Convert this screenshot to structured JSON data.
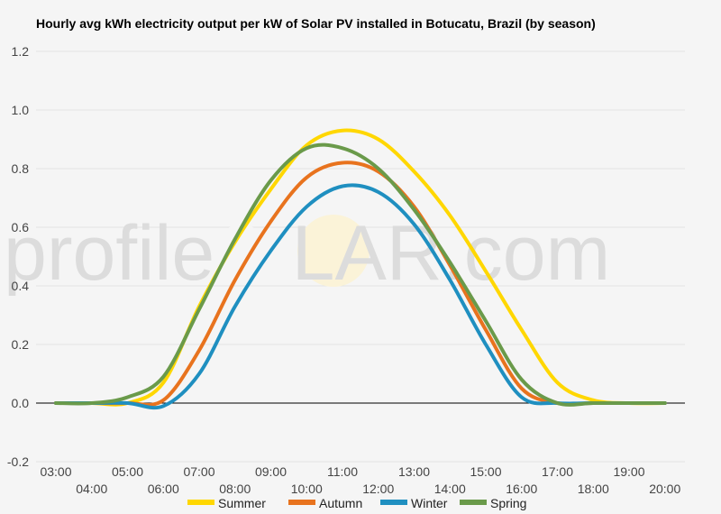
{
  "chart_data": {
    "type": "line",
    "title": "Hourly avg kWh electricity output per kW of Solar PV installed in Botucatu, Brazil (by season)",
    "xlabel": "",
    "ylabel": "",
    "ylim": [
      -0.2,
      1.2
    ],
    "yticks": [
      "1.2",
      "1.0",
      "0.8",
      "0.6",
      "0.4",
      "0.2",
      "0.0",
      "-0.2"
    ],
    "ytick_values": [
      1.2,
      1.0,
      0.8,
      0.6,
      0.4,
      0.2,
      0.0,
      -0.2
    ],
    "categories": [
      "03:00",
      "04:00",
      "05:00",
      "06:00",
      "07:00",
      "08:00",
      "09:00",
      "10:00",
      "11:00",
      "12:00",
      "13:00",
      "14:00",
      "15:00",
      "16:00",
      "17:00",
      "18:00",
      "19:00",
      "20:00"
    ],
    "grid": true,
    "legend_position": "bottom",
    "series": [
      {
        "name": "Summer",
        "color": "#ffd700",
        "values": [
          0,
          0,
          0,
          0.07,
          0.33,
          0.55,
          0.73,
          0.88,
          0.93,
          0.9,
          0.79,
          0.64,
          0.45,
          0.25,
          0.07,
          0.01,
          0,
          0
        ]
      },
      {
        "name": "Autumn",
        "color": "#e8731e",
        "values": [
          0,
          0,
          0,
          0.01,
          0.18,
          0.42,
          0.62,
          0.77,
          0.82,
          0.79,
          0.67,
          0.47,
          0.25,
          0.05,
          0,
          0,
          0,
          0
        ]
      },
      {
        "name": "Winter",
        "color": "#1f8fc0",
        "values": [
          0,
          0,
          0,
          -0.01,
          0.1,
          0.33,
          0.52,
          0.67,
          0.74,
          0.72,
          0.61,
          0.42,
          0.2,
          0.02,
          0,
          0,
          0,
          0
        ]
      },
      {
        "name": "Spring",
        "color": "#6a9a4a",
        "values": [
          0,
          0,
          0.02,
          0.09,
          0.32,
          0.56,
          0.76,
          0.87,
          0.87,
          0.8,
          0.66,
          0.48,
          0.28,
          0.08,
          0,
          0,
          0,
          0
        ]
      }
    ]
  },
  "watermark": {
    "part1": "profile",
    "part2": "S",
    "part3": "LAR.com"
  }
}
